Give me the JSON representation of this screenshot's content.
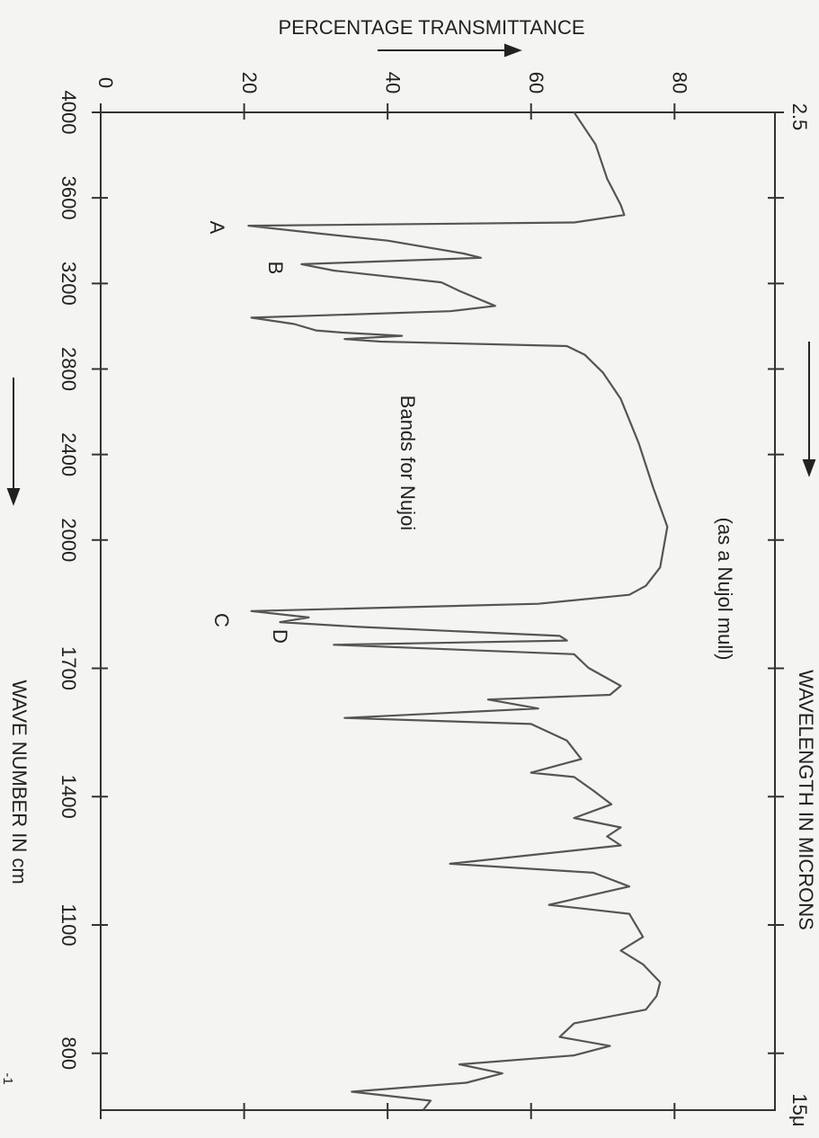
{
  "chart_data": {
    "type": "line",
    "y_label": "PERCENTAGE TRANSMITTANCE",
    "x_label": "WAVE NUMBER IN  cm",
    "x_label_exponent": "-1",
    "x2_label": "WAVELENGTH IN MICRONS",
    "x2_tick_labels": [
      "2.5",
      "15μ"
    ],
    "peak_labels": [
      "A",
      "B",
      "C",
      "D"
    ],
    "notes": [
      "Bands for Nujoi",
      "(as a Nujol mull)"
    ],
    "color": "#555555",
    "xlim": [
      4000,
      667
    ],
    "x_scale": {
      "break": 2000,
      "expansion": 2
    },
    "xticks": [
      4000,
      3600,
      3200,
      2800,
      2400,
      2000,
      1700,
      1400,
      1100,
      800
    ],
    "ylim": [
      0,
      94
    ],
    "yticks": [
      0,
      20,
      40,
      60,
      80
    ],
    "x": [
      4000,
      3850,
      3690,
      3567,
      3520,
      3485,
      3470,
      3435,
      3400,
      3340,
      3320,
      3290,
      3260,
      3205,
      3165,
      3095,
      3070,
      3040,
      3010,
      2980,
      2970,
      2955,
      2940,
      2928,
      2907,
      2866,
      2784,
      2660,
      2454,
      2247,
      2062,
      1936,
      1893,
      1872,
      1851,
      1834,
      1819,
      1808,
      1797,
      1776,
      1765,
      1755,
      1733,
      1701,
      1659,
      1638,
      1627,
      1606,
      1584,
      1570,
      1531,
      1488,
      1456,
      1446,
      1414,
      1382,
      1350,
      1328,
      1307,
      1286,
      1243,
      1222,
      1190,
      1147,
      1126,
      1072,
      1040,
      1008,
      966,
      934,
      902,
      870,
      838,
      817,
      795,
      774,
      753,
      731,
      710,
      689,
      668
    ],
    "values": [
      66,
      69,
      70.6,
      72.5,
      73,
      66,
      20.6,
      30,
      40,
      50.6,
      53,
      28,
      32.5,
      47.5,
      50,
      55,
      48.7,
      21,
      27,
      30,
      33.7,
      42,
      34,
      39,
      65,
      67.5,
      70,
      72.5,
      75,
      77,
      79,
      78,
      76,
      73.7,
      61,
      21,
      29,
      25,
      36,
      64,
      65,
      32.5,
      66,
      68,
      72.5,
      71,
      54,
      61,
      34,
      60,
      65,
      67,
      60,
      66,
      68.7,
      71.2,
      66,
      72.5,
      70.6,
      72.5,
      48.7,
      68.7,
      73.7,
      62.5,
      73.7,
      75.6,
      72.5,
      75.6,
      78,
      77.5,
      76,
      66,
      64,
      71,
      66,
      50,
      56,
      51,
      35,
      46,
      45
    ]
  }
}
